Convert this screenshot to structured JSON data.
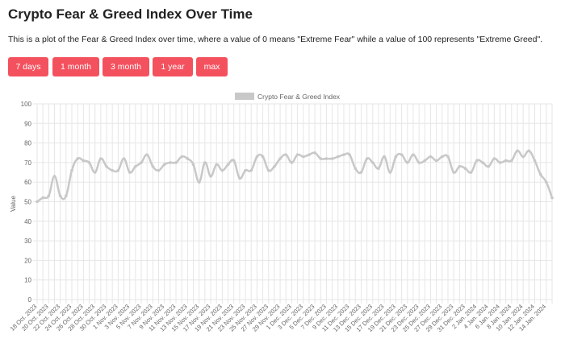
{
  "page": {
    "title": "Crypto Fear & Greed Index Over Time",
    "description": "This is a plot of the Fear & Greed Index over time, where a value of 0 means \"Extreme Fear\" while a value of 100 represents \"Extreme Greed\"."
  },
  "buttons": [
    "7 days",
    "1 month",
    "3 month",
    "1 year",
    "max"
  ],
  "colors": {
    "button_bg": "#f4515e",
    "button_text": "#ffffff",
    "line": "#c8c8c8",
    "grid": "#e6e6e6"
  },
  "chart_data": {
    "type": "line",
    "title": "",
    "ylabel": "Value",
    "xlabel": "",
    "ylim": [
      0,
      100
    ],
    "yticks": [
      0,
      10,
      20,
      30,
      40,
      50,
      60,
      70,
      80,
      90,
      100
    ],
    "grid": true,
    "legend": "top-center",
    "series": [
      {
        "name": "Crypto Fear & Greed Index",
        "values": [
          50,
          52,
          53,
          63,
          53,
          53,
          66,
          72,
          71,
          70,
          65,
          72,
          68,
          66,
          66,
          72,
          65,
          68,
          70,
          74,
          68,
          66,
          69,
          70,
          70,
          73,
          72,
          69,
          60,
          70,
          63,
          69,
          66,
          69,
          71,
          62,
          66,
          66,
          73,
          73,
          66,
          68,
          72,
          74,
          70,
          74,
          73,
          74,
          75,
          72,
          72,
          72,
          73,
          74,
          74,
          67,
          65,
          72,
          70,
          67,
          73,
          65,
          73,
          74,
          70,
          74,
          70,
          71,
          73,
          71,
          73,
          73,
          65,
          68,
          67,
          65,
          71,
          70,
          68,
          72,
          70,
          71,
          71,
          76,
          73,
          76,
          71,
          64,
          60,
          52
        ]
      }
    ],
    "categories": [
      "18 Oct. 2023",
      "19 Oct. 2023",
      "20 Oct. 2023",
      "21 Oct. 2023",
      "22 Oct. 2023",
      "23 Oct. 2023",
      "24 Oct. 2023",
      "25 Oct. 2023",
      "26 Oct. 2023",
      "27 Oct. 2023",
      "28 Oct. 2023",
      "29 Oct. 2023",
      "30 Oct. 2023",
      "31 Oct. 2023",
      "1 Nov. 2023",
      "2 Nov. 2023",
      "3 Nov. 2023",
      "4 Nov. 2023",
      "5 Nov. 2023",
      "6 Nov. 2023",
      "7 Nov. 2023",
      "8 Nov. 2023",
      "9 Nov. 2023",
      "10 Nov. 2023",
      "11 Nov. 2023",
      "12 Nov. 2023",
      "13 Nov. 2023",
      "14 Nov. 2023",
      "15 Nov. 2023",
      "16 Nov. 2023",
      "17 Nov. 2023",
      "18 Nov. 2023",
      "19 Nov. 2023",
      "20 Nov. 2023",
      "21 Nov. 2023",
      "22 Nov. 2023",
      "23 Nov. 2023",
      "24 Nov. 2023",
      "25 Nov. 2023",
      "26 Nov. 2023",
      "27 Nov. 2023",
      "28 Nov. 2023",
      "29 Nov. 2023",
      "30 Nov. 2023",
      "1 Dec. 2023",
      "2 Dec. 2023",
      "3 Dec. 2023",
      "4 Dec. 2023",
      "5 Dec. 2023",
      "6 Dec. 2023",
      "7 Dec. 2023",
      "8 Dec. 2023",
      "9 Dec. 2023",
      "10 Dec. 2023",
      "11 Dec. 2023",
      "12 Dec. 2023",
      "13 Dec. 2023",
      "14 Dec. 2023",
      "15 Dec. 2023",
      "16 Dec. 2023",
      "17 Dec. 2023",
      "18 Dec. 2023",
      "19 Dec. 2023",
      "20 Dec. 2023",
      "21 Dec. 2023",
      "22 Dec. 2023",
      "23 Dec. 2023",
      "24 Dec. 2023",
      "25 Dec. 2023",
      "26 Dec. 2023",
      "27 Dec. 2023",
      "28 Dec. 2023",
      "29 Dec. 2023",
      "30 Dec. 2023",
      "31 Dec. 2023",
      "1 Jan. 2024",
      "2 Jan. 2024",
      "3 Jan. 2024",
      "4 Jan. 2024",
      "5 Jan. 2024",
      "6 Jan. 2024",
      "7 Jan. 2024",
      "8 Jan. 2024",
      "9 Jan. 2024",
      "10 Jan. 2024",
      "11 Jan. 2024",
      "12 Jan. 2024",
      "13 Jan. 2024",
      "14 Jan. 2024",
      "15 Jan. 2024"
    ],
    "xtick_labels": [
      "18 Oct. 2023",
      "20 Oct. 2023",
      "22 Oct. 2023",
      "24 Oct. 2023",
      "26 Oct. 2023",
      "28 Oct. 2023",
      "30 Oct. 2023",
      "1 Nov. 2023",
      "3 Nov. 2023",
      "5 Nov. 2023",
      "7 Nov. 2023",
      "9 Nov. 2023",
      "11 Nov. 2023",
      "13 Nov. 2023",
      "15 Nov. 2023",
      "17 Nov. 2023",
      "19 Nov. 2023",
      "21 Nov. 2023",
      "23 Nov. 2023",
      "25 Nov. 2023",
      "27 Nov. 2023",
      "29 Nov. 2023",
      "1 Dec. 2023",
      "3 Dec. 2023",
      "5 Dec. 2023",
      "7 Dec. 2023",
      "9 Dec. 2023",
      "11 Dec. 2023",
      "13 Dec. 2023",
      "15 Dec. 2023",
      "17 Dec. 2023",
      "19 Dec. 2023",
      "21 Dec. 2023",
      "23 Dec. 2023",
      "25 Dec. 2023",
      "27 Dec. 2023",
      "29 Dec. 2023",
      "31 Dec. 2023",
      "2 Jan. 2024",
      "4 Jan. 2024",
      "6 Jan. 2024",
      "8 Jan. 2024",
      "10 Jan. 2024",
      "12 Jan. 2024",
      "14 Jan. 2024"
    ]
  }
}
